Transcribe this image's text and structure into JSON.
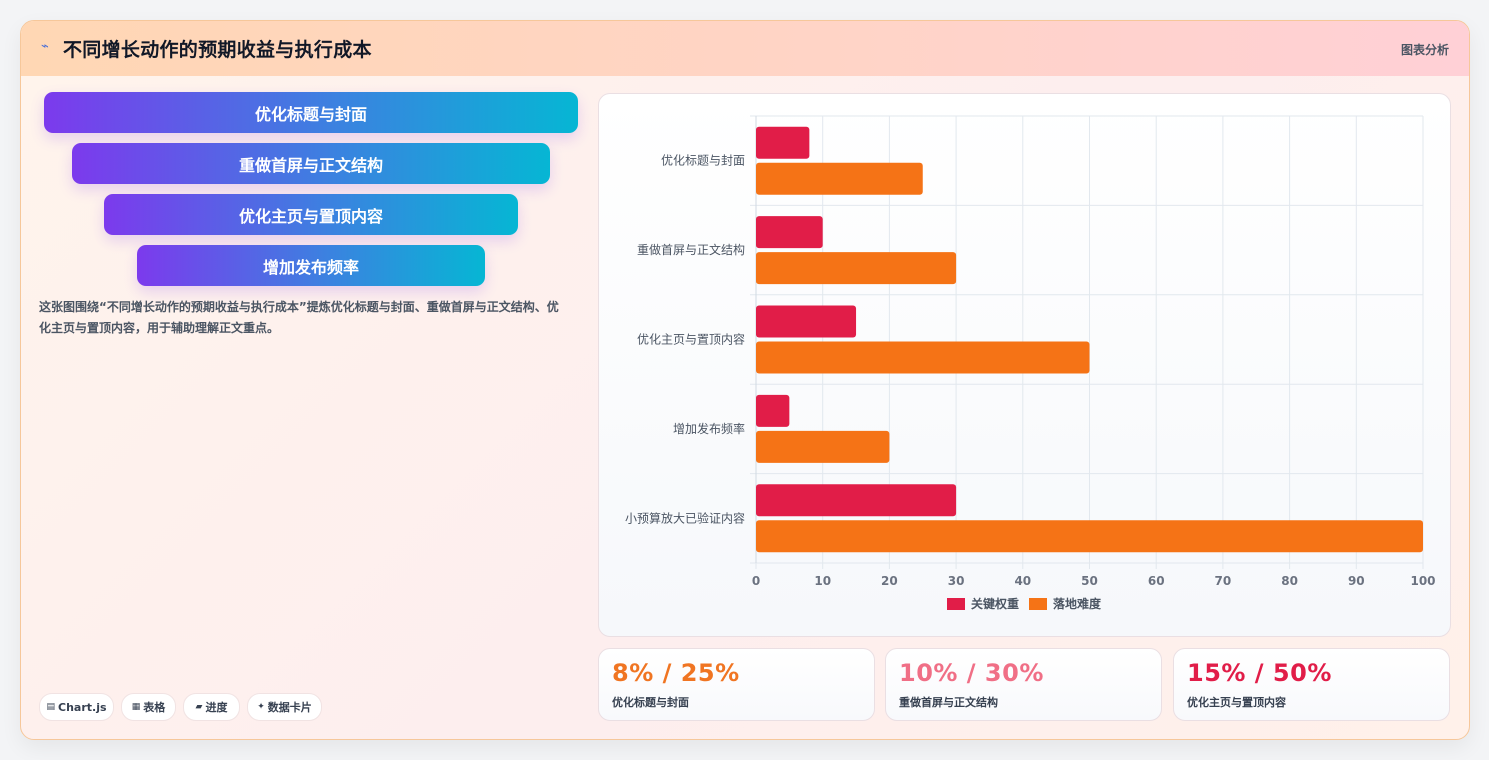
{
  "header": {
    "title": "不同增长动作的预期收益与执行成本",
    "tag": "图表分析"
  },
  "funnel": [
    "优化标题与封面",
    "重做首屏与正文结构",
    "优化主页与置顶内容",
    "增加发布频率"
  ],
  "description": "这张图围绕“不同增长动作的预期收益与执行成本”提炼优化标题与封面、重做首屏与正文结构、优化主页与置顶内容，用于辅助理解正文重点。",
  "chips": [
    {
      "icon": "▤",
      "icon_name": "chart-icon",
      "label": "Chart.js"
    },
    {
      "icon": "▦",
      "icon_name": "table-icon",
      "label": "表格"
    },
    {
      "icon": "▰",
      "icon_name": "progress-icon",
      "label": "进度"
    },
    {
      "icon": "✦",
      "icon_name": "sparkle-icon",
      "label": "数据卡片"
    }
  ],
  "stats": [
    {
      "value": "8% / 25%",
      "label": "优化标题与封面",
      "color": "#f07522"
    },
    {
      "value": "10% / 30%",
      "label": "重做首屏与正文结构",
      "color": "#f06f86"
    },
    {
      "value": "15% / 50%",
      "label": "优化主页与置顶内容",
      "color": "#e11d48"
    }
  ],
  "chart_data": {
    "type": "bar",
    "orientation": "horizontal",
    "categories": [
      "优化标题与封面",
      "重做首屏与正文结构",
      "优化主页与置顶内容",
      "增加发布频率",
      "小预算放大已验证内容"
    ],
    "series": [
      {
        "name": "关键权重",
        "color": "#e11d48",
        "values": [
          8,
          10,
          15,
          5,
          30
        ]
      },
      {
        "name": "落地难度",
        "color": "#f57316",
        "values": [
          25,
          30,
          50,
          20,
          100
        ]
      }
    ],
    "xlim": [
      0,
      100
    ],
    "xticks": [
      0,
      10,
      20,
      30,
      40,
      50,
      60,
      70,
      80,
      90,
      100
    ],
    "grid": true,
    "legend": "bottom"
  },
  "colors": {
    "funnel_start": "#7c3aed",
    "funnel_end": "#06b6d4",
    "accent_orange": "#f57316",
    "accent_red": "#e11d48"
  }
}
